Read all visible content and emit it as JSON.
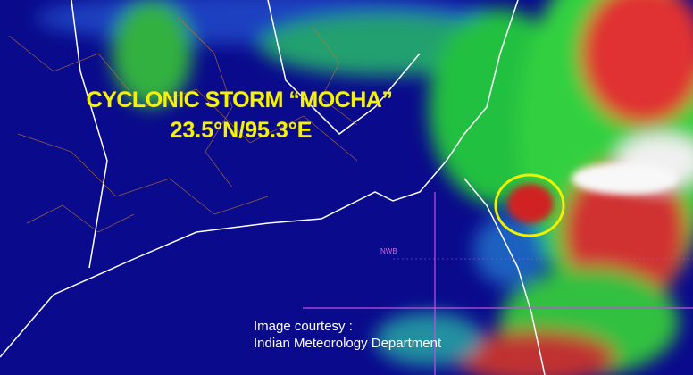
{
  "title": {
    "line1": "CYCLONIC STORM “MOCHA”",
    "line2": "23.5°N/95.3°E"
  },
  "credit": {
    "line1": "Image courtesy :",
    "line2": "Indian Meteorology Department"
  },
  "region_label": "NWB",
  "colors": {
    "ocean": "#0a0a8c",
    "cloud_low": "#20d040",
    "cloud_high": "#e02020",
    "marker": "#f0f000",
    "title": "#f2f20a"
  }
}
